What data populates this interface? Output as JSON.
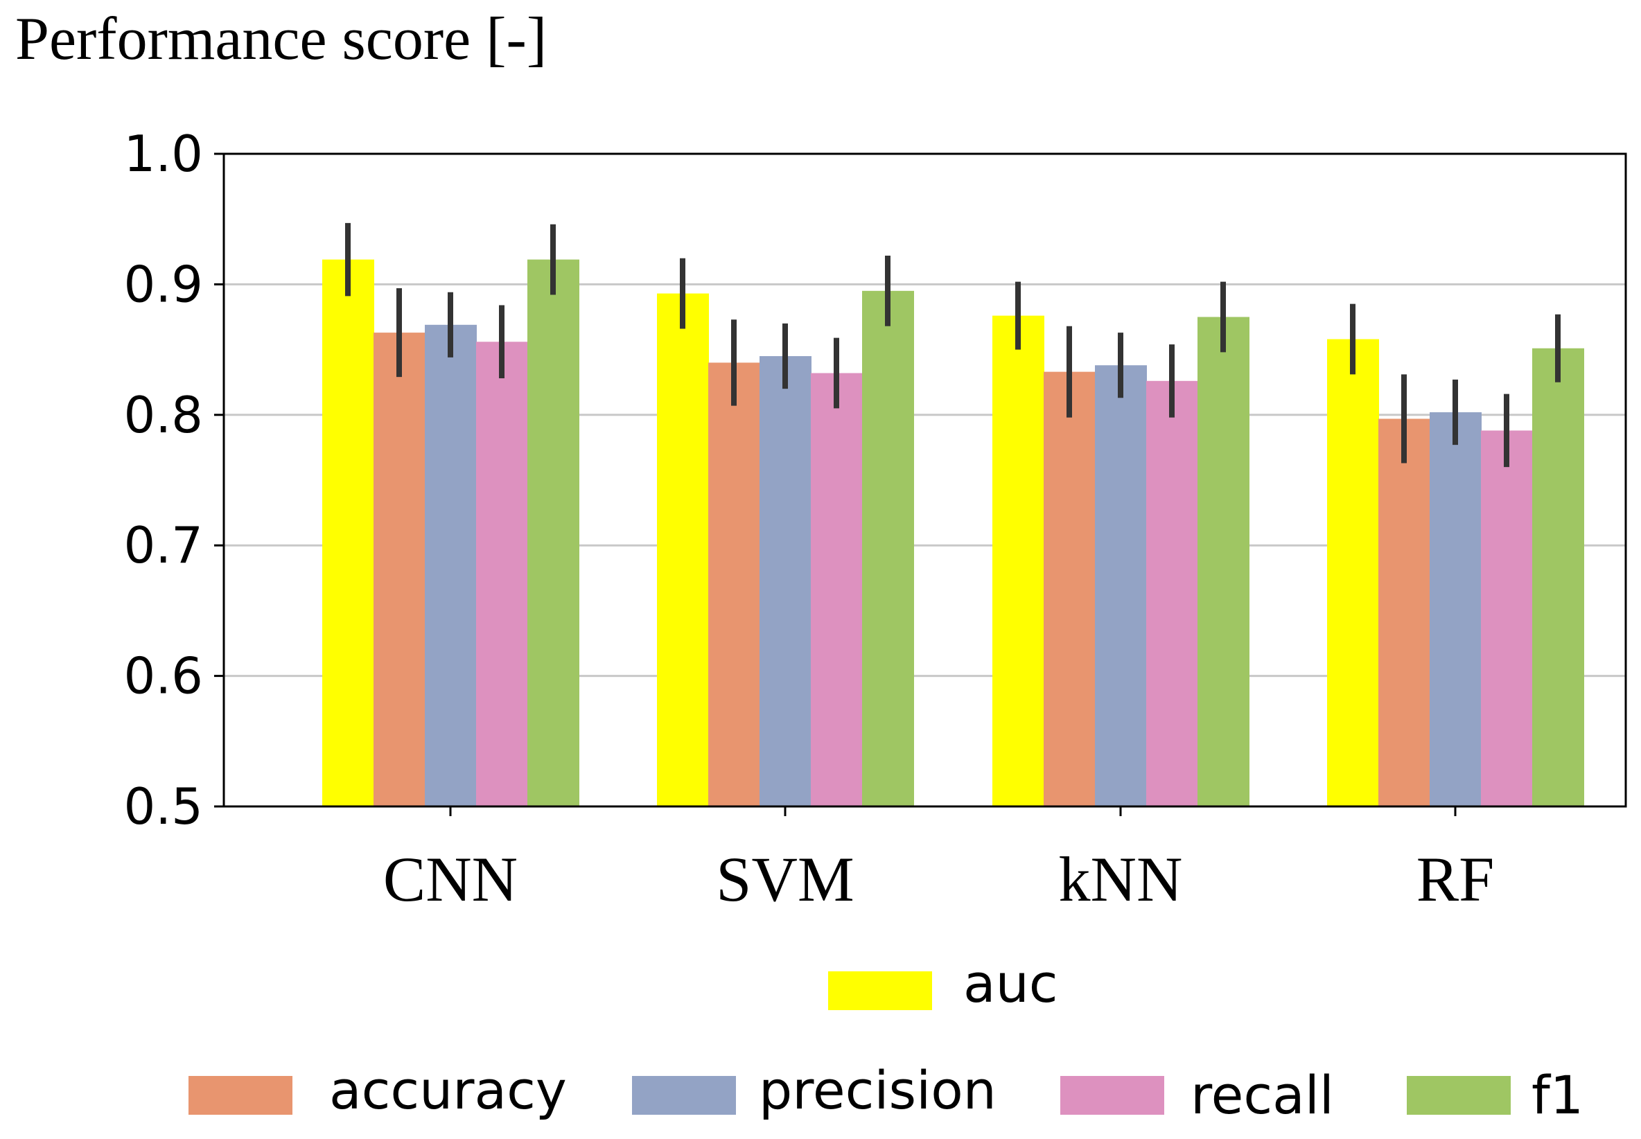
{
  "chart_data": {
    "type": "bar",
    "title": "Performance score [-]",
    "xlabel": "",
    "ylabel": "Performance score [-]",
    "ylim": [
      0.5,
      1.0
    ],
    "yticks": [
      "0.5",
      "0.6",
      "0.7",
      "0.8",
      "0.9",
      "1.0"
    ],
    "ytick_values": [
      0.5,
      0.6,
      0.7,
      0.8,
      0.9,
      1.0
    ],
    "grid": true,
    "legend_position": "bottom",
    "categories": [
      "CNN",
      "SVM",
      "kNN",
      "RF"
    ],
    "series": [
      {
        "name": "auc",
        "color": "#ffff00",
        "values": [
          0.919,
          0.893,
          0.876,
          0.858
        ],
        "err": [
          0.028,
          0.027,
          0.026,
          0.027
        ]
      },
      {
        "name": "accuracy",
        "color": "#e8956f",
        "values": [
          0.863,
          0.84,
          0.833,
          0.797
        ],
        "err": [
          0.034,
          0.033,
          0.035,
          0.034
        ]
      },
      {
        "name": "precision",
        "color": "#93a3c5",
        "values": [
          0.869,
          0.845,
          0.838,
          0.802
        ],
        "err": [
          0.025,
          0.025,
          0.025,
          0.025
        ]
      },
      {
        "name": "recall",
        "color": "#dd91bf",
        "values": [
          0.856,
          0.832,
          0.826,
          0.788
        ],
        "err": [
          0.028,
          0.027,
          0.028,
          0.028
        ]
      },
      {
        "name": "f1",
        "color": "#9fc663",
        "values": [
          0.919,
          0.895,
          0.875,
          0.851
        ],
        "err": [
          0.027,
          0.027,
          0.027,
          0.026
        ]
      }
    ]
  }
}
